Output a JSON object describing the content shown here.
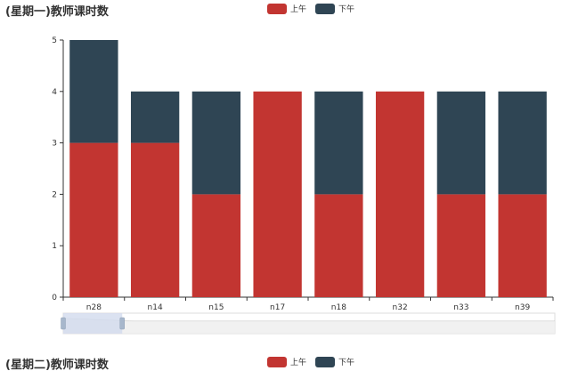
{
  "colors": {
    "morning": "#c23531",
    "afternoon": "#2f4554",
    "axis": "#333333",
    "zoom_fill": "#d2dbee"
  },
  "charts": [
    {
      "title": "(星期一)教师课时数",
      "legend": [
        "上午",
        "下午"
      ]
    },
    {
      "title": "(星期二)教师课时数",
      "legend": [
        "上午",
        "下午"
      ]
    }
  ],
  "chart_data": [
    {
      "type": "bar",
      "stacked": true,
      "title": "(星期一)教师课时数",
      "categories": [
        "n28",
        "n14",
        "n15",
        "n17",
        "n18",
        "n32",
        "n33",
        "n39"
      ],
      "series": [
        {
          "name": "上午",
          "values": [
            3,
            3,
            2,
            4,
            2,
            4,
            2,
            2
          ]
        },
        {
          "name": "下午",
          "values": [
            2,
            1,
            2,
            0,
            2,
            0,
            2,
            2
          ]
        }
      ],
      "ylim": [
        0,
        5
      ],
      "yticks": [
        0,
        1,
        2,
        3,
        4,
        5
      ],
      "legend_position": "top-center",
      "grid": false,
      "data_zoom": {
        "start": 0,
        "end": 0.12
      }
    },
    {
      "type": "bar",
      "stacked": true,
      "title": "(星期二)教师课时数",
      "series": [
        {
          "name": "上午",
          "values": []
        },
        {
          "name": "下午",
          "values": []
        }
      ],
      "legend_position": "top-center"
    }
  ]
}
